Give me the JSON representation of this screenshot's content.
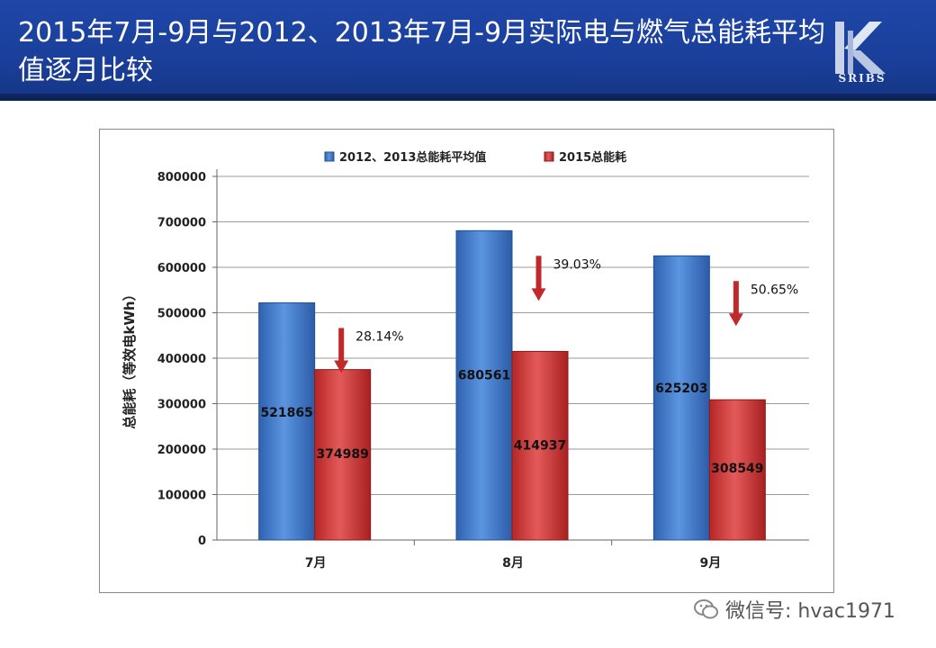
{
  "slide": {
    "title": "2015年7月-9月与2012、2013年7月-9月实际电与燃气总能耗平均值逐月比较",
    "logo_text": "SRIBS",
    "watermark": "微信号: hvac1971"
  },
  "colors": {
    "header_bg": "#1f47a8",
    "series_blue": "#3f7fd1",
    "series_red": "#d93a3a",
    "arrow": "#c0282a"
  },
  "chart_data": {
    "type": "bar",
    "categories": [
      "7月",
      "8月",
      "9月"
    ],
    "series": [
      {
        "name": "2012、2013总能耗平均值",
        "values": [
          521865,
          680561,
          625203
        ],
        "color": "#3f7fd1"
      },
      {
        "name": "2015总能耗",
        "values": [
          374989,
          414937,
          308549
        ],
        "color": "#d93a3a"
      }
    ],
    "ylabel": "总能耗（等效电kWh）",
    "ylim": [
      0,
      800000
    ],
    "yticks": [
      0,
      100000,
      200000,
      300000,
      400000,
      500000,
      600000,
      700000,
      800000
    ],
    "annotations": [
      "28.14%",
      "39.03%",
      "50.65%"
    ],
    "grid": true,
    "legend": "top"
  }
}
